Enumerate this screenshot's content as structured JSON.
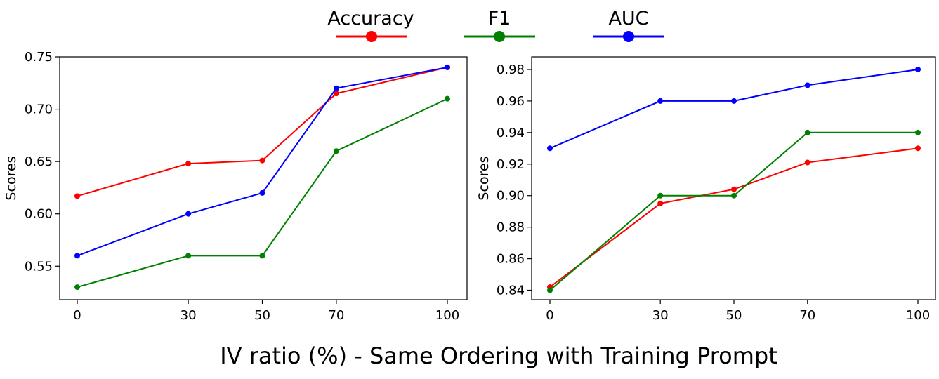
{
  "legend": {
    "items": [
      {
        "label": "Accuracy",
        "color": "#ff0000"
      },
      {
        "label": "F1",
        "color": "#008000"
      },
      {
        "label": "AUC",
        "color": "#0000ff"
      }
    ]
  },
  "figure_xlabel": "IV ratio (%) - Same Ordering with Training Prompt",
  "chart_data": [
    {
      "type": "line",
      "x": [
        0,
        30,
        50,
        70,
        100
      ],
      "xticks": [
        "0",
        "30",
        "50",
        "70",
        "100"
      ],
      "ylabel": "Scores",
      "ylim": [
        0.518,
        0.75
      ],
      "yticks": [
        "0.55",
        "0.60",
        "0.65",
        "0.70",
        "0.75"
      ],
      "ytick_values": [
        0.55,
        0.6,
        0.65,
        0.7,
        0.75
      ],
      "grid": false,
      "series": [
        {
          "name": "Accuracy",
          "color": "#ff0000",
          "values": [
            0.617,
            0.648,
            0.651,
            0.715,
            0.74
          ]
        },
        {
          "name": "F1",
          "color": "#008000",
          "values": [
            0.53,
            0.56,
            0.56,
            0.66,
            0.71
          ]
        },
        {
          "name": "AUC",
          "color": "#0000ff",
          "values": [
            0.56,
            0.6,
            0.62,
            0.72,
            0.74
          ]
        }
      ]
    },
    {
      "type": "line",
      "x": [
        0,
        30,
        50,
        70,
        100
      ],
      "xticks": [
        "0",
        "30",
        "50",
        "70",
        "100"
      ],
      "ylabel": "Scores",
      "ylim": [
        0.834,
        0.988
      ],
      "yticks": [
        "0.84",
        "0.86",
        "0.88",
        "0.90",
        "0.92",
        "0.94",
        "0.96",
        "0.98"
      ],
      "ytick_values": [
        0.84,
        0.86,
        0.88,
        0.9,
        0.92,
        0.94,
        0.96,
        0.98
      ],
      "grid": false,
      "series": [
        {
          "name": "Accuracy",
          "color": "#ff0000",
          "values": [
            0.842,
            0.895,
            0.904,
            0.921,
            0.93
          ]
        },
        {
          "name": "F1",
          "color": "#008000",
          "values": [
            0.84,
            0.9,
            0.9,
            0.94,
            0.94
          ]
        },
        {
          "name": "AUC",
          "color": "#0000ff",
          "values": [
            0.93,
            0.96,
            0.96,
            0.97,
            0.98
          ]
        }
      ]
    }
  ]
}
